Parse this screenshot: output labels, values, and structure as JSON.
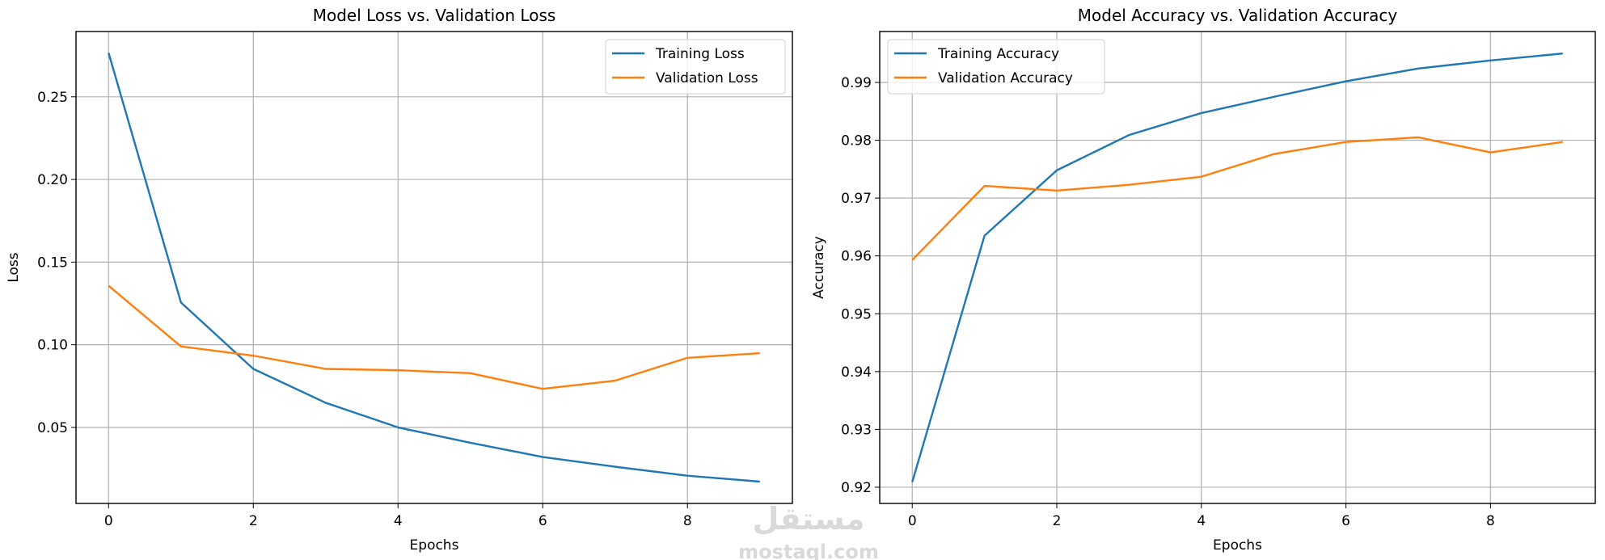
{
  "chart_data": [
    {
      "type": "line",
      "title": "Model Loss vs. Validation Loss",
      "xlabel": "Epochs",
      "ylabel": "Loss",
      "x": [
        0,
        1,
        2,
        3,
        4,
        5,
        6,
        7,
        8,
        9
      ],
      "xlim": [
        -0.45,
        9.45
      ],
      "ylim": [
        0.004,
        0.2895
      ],
      "xticks": [
        0,
        2,
        4,
        6,
        8
      ],
      "yticks": [
        0.05,
        0.1,
        0.15,
        0.2,
        0.25
      ],
      "ytick_labels": [
        "0.05",
        "0.10",
        "0.15",
        "0.20",
        "0.25"
      ],
      "grid": true,
      "legend": "top-right",
      "series": [
        {
          "name": "Training Loss",
          "color": "#1f77b4",
          "values": [
            0.2766,
            0.1256,
            0.0854,
            0.0649,
            0.05,
            0.0407,
            0.0321,
            0.0262,
            0.0208,
            0.0172
          ]
        },
        {
          "name": "Validation Loss",
          "color": "#ff7f0e",
          "values": [
            0.1357,
            0.099,
            0.0934,
            0.0854,
            0.0846,
            0.0828,
            0.0733,
            0.0783,
            0.0921,
            0.0949
          ]
        }
      ]
    },
    {
      "type": "line",
      "title": "Model Accuracy vs. Validation Accuracy",
      "xlabel": "Epochs",
      "ylabel": "Accuracy",
      "x": [
        0,
        1,
        2,
        3,
        4,
        5,
        6,
        7,
        8,
        9
      ],
      "xlim": [
        -0.45,
        9.45
      ],
      "ylim": [
        0.9172,
        0.9988
      ],
      "xticks": [
        0,
        2,
        4,
        6,
        8
      ],
      "yticks": [
        0.92,
        0.93,
        0.94,
        0.95,
        0.96,
        0.97,
        0.98,
        0.99
      ],
      "ytick_labels": [
        "0.92",
        "0.93",
        "0.94",
        "0.95",
        "0.96",
        "0.97",
        "0.98",
        "0.99"
      ],
      "grid": true,
      "legend": "top-left",
      "series": [
        {
          "name": "Training Accuracy",
          "color": "#1f77b4",
          "values": [
            0.9209,
            0.9635,
            0.9748,
            0.9809,
            0.9847,
            0.9875,
            0.9902,
            0.9924,
            0.9938,
            0.995
          ]
        },
        {
          "name": "Validation Accuracy",
          "color": "#ff7f0e",
          "values": [
            0.9593,
            0.9721,
            0.9713,
            0.9723,
            0.9737,
            0.9776,
            0.9797,
            0.9805,
            0.9779,
            0.9797
          ]
        }
      ]
    }
  ],
  "watermark": {
    "text": "mostaql.com",
    "arabic": "مستقل"
  }
}
